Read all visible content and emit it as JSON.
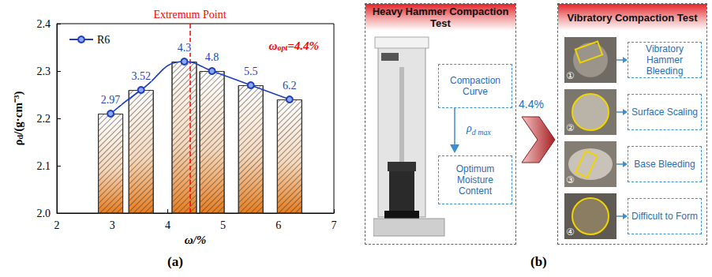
{
  "chart_data": {
    "type": "bar_line",
    "panel_letter": "(a)",
    "xlabel": "ω/%",
    "ylabel": "ρd/(g·cm⁻³)",
    "ylabel_subscript": "d",
    "x": [
      2.97,
      3.52,
      4.3,
      4.8,
      5.5,
      6.2
    ],
    "series": [
      {
        "type": "bar",
        "color": "#e87d1e",
        "values": [
          2.21,
          2.26,
          2.32,
          2.3,
          2.27,
          2.24
        ]
      },
      {
        "name": "R6",
        "type": "line",
        "color": "#1f3fbf",
        "marker": "circle",
        "line_style": "smooth",
        "data_labels": true,
        "values": [
          2.21,
          2.26,
          2.32,
          2.3,
          2.27,
          2.24
        ]
      }
    ],
    "xlim": [
      2,
      7
    ],
    "xticks": [
      2,
      3,
      4,
      5,
      6,
      7
    ],
    "ylim": [
      2,
      2.4
    ],
    "yticks": [
      {
        "value": 2,
        "label": "2.0"
      },
      2.1,
      2.2,
      2.3,
      2.4
    ],
    "grid": false,
    "legend": "upper left",
    "annotations": [
      {
        "text": "Extremum Point",
        "x": 4.4,
        "color": "#ff0000",
        "line_style": "dashed"
      },
      {
        "text": "ωopt=4.4%",
        "subscript": "opt",
        "color": "#ff0000"
      }
    ]
  },
  "panel_b": {
    "letter": "(b)",
    "left": {
      "title": "Heavy Hammer Compaction Test",
      "steps": [
        "Compaction Curve",
        "Optimum Moisture Content"
      ],
      "arrow_label": {
        "text": "ρd max",
        "subscript": "d max"
      }
    },
    "link_label": "4.4%",
    "right": {
      "title": "Vibratory Compaction Test",
      "items": [
        {
          "number": "①",
          "label": "Vibratory Hammer Bleeding"
        },
        {
          "number": "②",
          "label": "Surface Scaling"
        },
        {
          "number": "③",
          "label": "Base Bleeding"
        },
        {
          "number": "④",
          "label": "Difficult to Form"
        }
      ]
    }
  }
}
